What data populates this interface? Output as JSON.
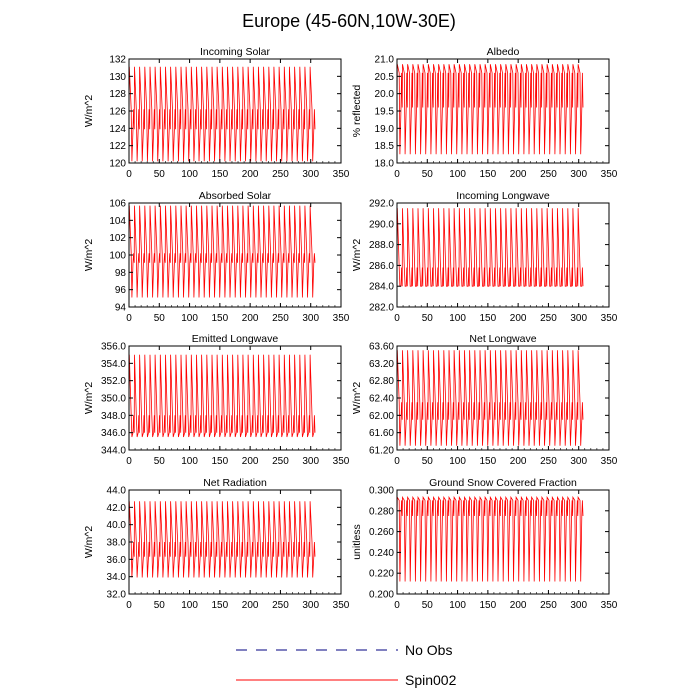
{
  "figure": {
    "title": "Europe (45-60N,10W-30E)",
    "legend": [
      {
        "label": "No Obs",
        "color": "#000080",
        "dash": "dashed"
      },
      {
        "label": "Spin002",
        "color": "#ff0000",
        "dash": "solid"
      }
    ]
  },
  "chart_data": [
    {
      "type": "line",
      "title": "Incoming Solar",
      "ylabel": "W/m^2",
      "xlim": [
        0,
        350
      ],
      "ylim": [
        120,
        132
      ],
      "xticks": [
        "0",
        "50",
        "100",
        "150",
        "200",
        "250",
        "300",
        "350"
      ],
      "yticks": [
        "120",
        "122",
        "124",
        "126",
        "128",
        "130",
        "132"
      ],
      "series": [
        {
          "name": "Spin002",
          "color": "#ff0000",
          "x_end": 307,
          "cycles": 36,
          "min": 120.2,
          "max": 131.1,
          "band_lo": 123.9,
          "band_hi": 126.2
        }
      ]
    },
    {
      "type": "line",
      "title": "Albedo",
      "ylabel": "% reflected",
      "xlim": [
        0,
        350
      ],
      "ylim": [
        18.0,
        21.0
      ],
      "xticks": [
        "0",
        "50",
        "100",
        "150",
        "200",
        "250",
        "300",
        "350"
      ],
      "yticks": [
        "18.0",
        "18.5",
        "19.0",
        "19.5",
        "20.0",
        "20.5",
        "21.0"
      ],
      "series": [
        {
          "name": "Spin002",
          "color": "#ff0000",
          "x_end": 307,
          "cycles": 36,
          "min": 18.25,
          "max": 20.85,
          "band_lo": 19.6,
          "band_hi": 20.6
        }
      ]
    },
    {
      "type": "line",
      "title": "Absorbed Solar",
      "ylabel": "W/m^2",
      "xlim": [
        0,
        350
      ],
      "ylim": [
        94,
        106
      ],
      "xticks": [
        "0",
        "50",
        "100",
        "150",
        "200",
        "250",
        "300",
        "350"
      ],
      "yticks": [
        "94",
        "96",
        "98",
        "100",
        "102",
        "104",
        "106"
      ],
      "series": [
        {
          "name": "Spin002",
          "color": "#ff0000",
          "x_end": 307,
          "cycles": 36,
          "min": 95.1,
          "max": 105.7,
          "band_lo": 99.1,
          "band_hi": 100.2
        }
      ]
    },
    {
      "type": "line",
      "title": "Incoming Longwave",
      "ylabel": "W/m^2",
      "xlim": [
        0,
        350
      ],
      "ylim": [
        282.0,
        292.0
      ],
      "xticks": [
        "0",
        "50",
        "100",
        "150",
        "200",
        "250",
        "300",
        "350"
      ],
      "yticks": [
        "282.0",
        "284.0",
        "286.0",
        "288.0",
        "290.0",
        "292.0"
      ],
      "series": [
        {
          "name": "Spin002",
          "color": "#ff0000",
          "x_end": 307,
          "cycles": 36,
          "min": 284.0,
          "max": 291.5,
          "band_lo": 284.0,
          "band_hi": 285.8
        }
      ]
    },
    {
      "type": "line",
      "title": "Emitted Longwave",
      "ylabel": "W/m^2",
      "xlim": [
        0,
        350
      ],
      "ylim": [
        344.0,
        356.0
      ],
      "xticks": [
        "0",
        "50",
        "100",
        "150",
        "200",
        "250",
        "300",
        "350"
      ],
      "yticks": [
        "344.0",
        "346.0",
        "348.0",
        "350.0",
        "352.0",
        "354.0",
        "356.0"
      ],
      "series": [
        {
          "name": "Spin002",
          "color": "#ff0000",
          "x_end": 307,
          "cycles": 36,
          "min": 345.5,
          "max": 355.0,
          "band_lo": 346.0,
          "band_hi": 348.0
        }
      ]
    },
    {
      "type": "line",
      "title": "Net Longwave",
      "ylabel": "W/m^2",
      "xlim": [
        0,
        350
      ],
      "ylim": [
        61.2,
        63.6
      ],
      "xticks": [
        "0",
        "50",
        "100",
        "150",
        "200",
        "250",
        "300",
        "350"
      ],
      "yticks": [
        "61.20",
        "61.60",
        "62.00",
        "62.40",
        "62.80",
        "63.20",
        "63.60"
      ],
      "series": [
        {
          "name": "Spin002",
          "color": "#ff0000",
          "x_end": 307,
          "cycles": 36,
          "min": 61.3,
          "max": 63.5,
          "band_lo": 61.9,
          "band_hi": 62.3
        }
      ]
    },
    {
      "type": "line",
      "title": "Net Radiation",
      "ylabel": "W/m^2",
      "xlim": [
        0,
        350
      ],
      "ylim": [
        32.0,
        44.0
      ],
      "xticks": [
        "0",
        "50",
        "100",
        "150",
        "200",
        "250",
        "300",
        "350"
      ],
      "yticks": [
        "32.0",
        "34.0",
        "36.0",
        "38.0",
        "40.0",
        "42.0",
        "44.0"
      ],
      "series": [
        {
          "name": "Spin002",
          "color": "#ff0000",
          "x_end": 307,
          "cycles": 36,
          "min": 33.9,
          "max": 42.7,
          "band_lo": 36.3,
          "band_hi": 38.0
        }
      ]
    },
    {
      "type": "line",
      "title": "Ground Snow Covered Fraction",
      "ylabel": "unitless",
      "xlim": [
        0,
        350
      ],
      "ylim": [
        0.2,
        0.3
      ],
      "xticks": [
        "0",
        "50",
        "100",
        "150",
        "200",
        "250",
        "300",
        "350"
      ],
      "yticks": [
        "0.200",
        "0.220",
        "0.240",
        "0.260",
        "0.280",
        "0.300"
      ],
      "series": [
        {
          "name": "Spin002",
          "color": "#ff0000",
          "x_end": 307,
          "cycles": 36,
          "min": 0.212,
          "max": 0.293,
          "band_lo": 0.275,
          "band_hi": 0.29
        }
      ]
    }
  ]
}
